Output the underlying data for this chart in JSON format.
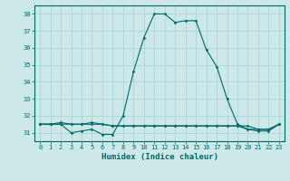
{
  "title": "",
  "xlabel": "Humidex (Indice chaleur)",
  "background_color": "#cce8e8",
  "grid_color": "#add4d4",
  "line_color": "#006868",
  "x_values": [
    0,
    1,
    2,
    3,
    4,
    5,
    6,
    7,
    8,
    9,
    10,
    11,
    12,
    13,
    14,
    15,
    16,
    17,
    18,
    19,
    20,
    21,
    22,
    23
  ],
  "line1_y": [
    31.5,
    31.5,
    31.6,
    31.5,
    31.5,
    31.6,
    31.5,
    31.4,
    31.4,
    31.4,
    31.4,
    31.4,
    31.4,
    31.4,
    31.4,
    31.4,
    31.4,
    31.4,
    31.4,
    31.4,
    31.4,
    31.2,
    31.2,
    31.5
  ],
  "line2_y": [
    31.5,
    31.5,
    31.5,
    31.0,
    31.1,
    31.2,
    30.9,
    30.9,
    32.0,
    34.6,
    36.6,
    38.0,
    38.0,
    37.5,
    37.6,
    37.6,
    35.9,
    34.9,
    33.0,
    31.5,
    31.2,
    31.1,
    31.1,
    31.5
  ],
  "line3_y": [
    31.5,
    31.5,
    31.5,
    31.5,
    31.5,
    31.5,
    31.5,
    31.4,
    31.4,
    31.4,
    31.4,
    31.4,
    31.4,
    31.4,
    31.4,
    31.4,
    31.4,
    31.4,
    31.4,
    31.4,
    31.2,
    31.2,
    31.2,
    31.5
  ],
  "ylim": [
    30.5,
    38.5
  ],
  "xlim": [
    -0.5,
    23.5
  ],
  "yticks": [
    31,
    32,
    33,
    34,
    35,
    36,
    37,
    38
  ],
  "xticks": [
    0,
    1,
    2,
    3,
    4,
    5,
    6,
    7,
    8,
    9,
    10,
    11,
    12,
    13,
    14,
    15,
    16,
    17,
    18,
    19,
    20,
    21,
    22,
    23
  ],
  "xtick_labels": [
    "0",
    "1",
    "2",
    "3",
    "4",
    "5",
    "6",
    "7",
    "8",
    "9",
    "10",
    "11",
    "12",
    "13",
    "14",
    "15",
    "16",
    "17",
    "18",
    "19",
    "20",
    "21",
    "22",
    "23"
  ],
  "tick_fontsize": 5.0,
  "xlabel_fontsize": 6.5,
  "marker_size": 1.8,
  "line_width": 0.8
}
